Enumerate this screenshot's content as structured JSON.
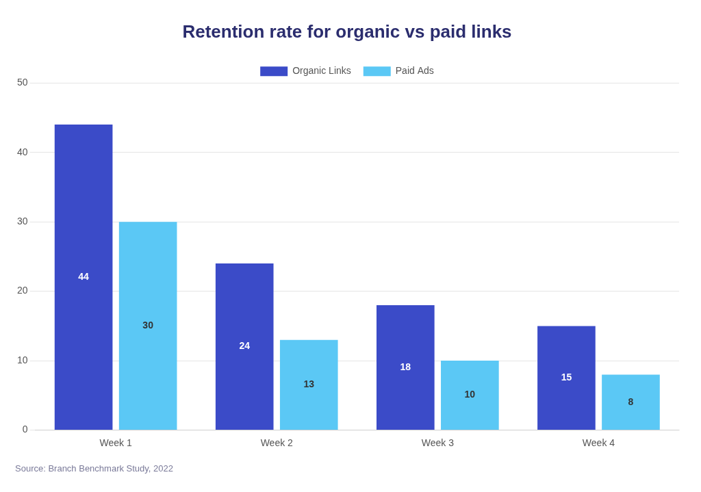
{
  "chart_data": {
    "type": "bar",
    "title": "Retention rate for organic vs paid links",
    "categories": [
      "Week 1",
      "Week 2",
      "Week 3",
      "Week 4"
    ],
    "series": [
      {
        "name": "Organic Links",
        "color": "#3B4BC8",
        "values": [
          44,
          24,
          18,
          15
        ]
      },
      {
        "name": "Paid Ads",
        "color": "#5BC8F5",
        "values": [
          30,
          13,
          10,
          8
        ]
      }
    ],
    "ylim": [
      0,
      50
    ],
    "yticks": [
      0,
      10,
      20,
      30,
      40,
      50
    ],
    "grid": true,
    "legend": "top",
    "data_labels": true,
    "annotations": [
      "Source: Branch Benchmark Study, 2022"
    ]
  }
}
